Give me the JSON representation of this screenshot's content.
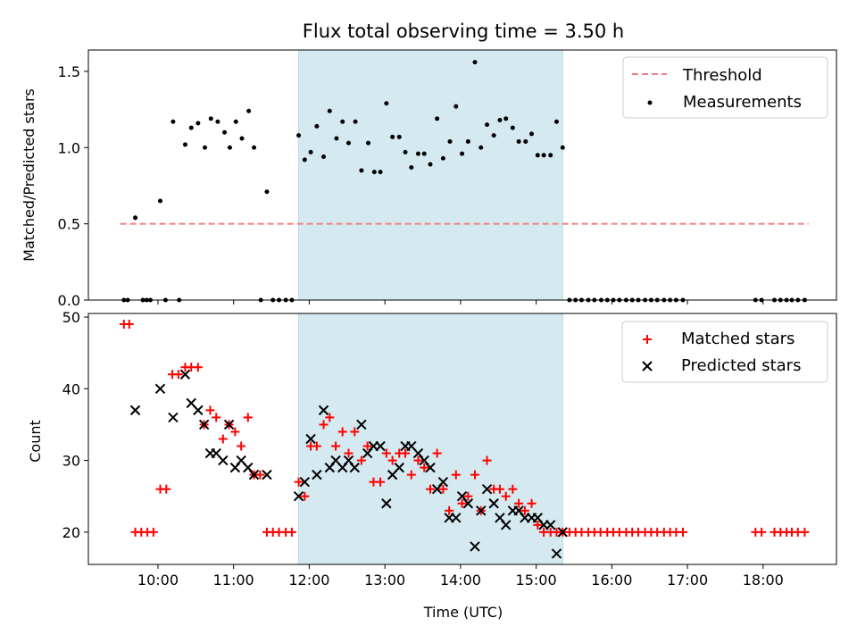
{
  "chart_data": [
    {
      "type": "scatter",
      "title": "Flux total observing time = 3.50 h",
      "xlabel": "",
      "ylabel": "Matched/Predicted stars",
      "xlim": [
        9.08,
        18.97
      ],
      "ylim": [
        0.0,
        1.64
      ],
      "xticks": [
        10,
        11,
        12,
        13,
        14,
        15,
        16,
        17,
        18
      ],
      "yticks": [
        0.0,
        0.5,
        1.0,
        1.5
      ],
      "ytick_labels": [
        "0.0",
        "0.5",
        "1.0",
        "1.5"
      ],
      "shaded_span": [
        11.86,
        15.35
      ],
      "shaded_color": "#d4eaf0",
      "threshold": {
        "label": "Threshold",
        "value": 0.5,
        "x_range": [
          9.5,
          18.6
        ],
        "color": "#f08080"
      },
      "legend_position": "upper right",
      "series": [
        {
          "name": "Measurements",
          "color": "#000000",
          "marker": "dot",
          "points": [
            [
              9.55,
              0.0
            ],
            [
              9.6,
              0.0
            ],
            [
              9.7,
              0.54
            ],
            [
              9.8,
              0.0
            ],
            [
              9.85,
              0.0
            ],
            [
              9.9,
              0.0
            ],
            [
              10.03,
              0.65
            ],
            [
              10.1,
              0.0
            ],
            [
              10.2,
              1.17
            ],
            [
              10.28,
              0.0
            ],
            [
              10.36,
              1.02
            ],
            [
              10.44,
              1.13
            ],
            [
              10.53,
              1.16
            ],
            [
              10.62,
              1.0
            ],
            [
              10.7,
              1.19
            ],
            [
              10.79,
              1.17
            ],
            [
              10.88,
              1.1
            ],
            [
              10.95,
              1.0
            ],
            [
              11.03,
              1.17
            ],
            [
              11.11,
              1.06
            ],
            [
              11.2,
              1.24
            ],
            [
              11.27,
              1.0
            ],
            [
              11.36,
              0.0
            ],
            [
              11.44,
              0.71
            ],
            [
              11.52,
              0.0
            ],
            [
              11.6,
              0.0
            ],
            [
              11.69,
              0.0
            ],
            [
              11.77,
              0.0
            ],
            [
              11.86,
              1.08
            ],
            [
              11.94,
              0.92
            ],
            [
              12.02,
              0.97
            ],
            [
              12.1,
              1.14
            ],
            [
              12.19,
              0.94
            ],
            [
              12.27,
              1.24
            ],
            [
              12.36,
              1.06
            ],
            [
              12.44,
              1.17
            ],
            [
              12.52,
              1.03
            ],
            [
              12.61,
              1.17
            ],
            [
              12.69,
              0.85
            ],
            [
              12.78,
              1.03
            ],
            [
              12.86,
              0.84
            ],
            [
              12.94,
              0.84
            ],
            [
              13.02,
              1.29
            ],
            [
              13.1,
              1.07
            ],
            [
              13.19,
              1.07
            ],
            [
              13.27,
              0.97
            ],
            [
              13.35,
              0.87
            ],
            [
              13.44,
              0.96
            ],
            [
              13.52,
              0.96
            ],
            [
              13.6,
              0.89
            ],
            [
              13.69,
              1.19
            ],
            [
              13.77,
              0.93
            ],
            [
              13.86,
              1.04
            ],
            [
              13.94,
              1.27
            ],
            [
              14.02,
              0.96
            ],
            [
              14.1,
              1.04
            ],
            [
              14.19,
              1.56
            ],
            [
              14.27,
              1.0
            ],
            [
              14.35,
              1.15
            ],
            [
              14.44,
              1.08
            ],
            [
              14.52,
              1.18
            ],
            [
              14.6,
              1.19
            ],
            [
              14.69,
              1.13
            ],
            [
              14.77,
              1.04
            ],
            [
              14.86,
              1.04
            ],
            [
              14.94,
              1.09
            ],
            [
              15.02,
              0.95
            ],
            [
              15.1,
              0.95
            ],
            [
              15.19,
              0.95
            ],
            [
              15.27,
              1.17
            ],
            [
              15.35,
              1.0
            ],
            [
              15.44,
              0.0
            ],
            [
              15.52,
              0.0
            ],
            [
              15.6,
              0.0
            ],
            [
              15.69,
              0.0
            ],
            [
              15.77,
              0.0
            ],
            [
              15.86,
              0.0
            ],
            [
              15.94,
              0.0
            ],
            [
              16.02,
              0.0
            ],
            [
              16.1,
              0.0
            ],
            [
              16.19,
              0.0
            ],
            [
              16.27,
              0.0
            ],
            [
              16.35,
              0.0
            ],
            [
              16.44,
              0.0
            ],
            [
              16.52,
              0.0
            ],
            [
              16.6,
              0.0
            ],
            [
              16.69,
              0.0
            ],
            [
              16.77,
              0.0
            ],
            [
              16.85,
              0.0
            ],
            [
              16.94,
              0.0
            ],
            [
              17.9,
              0.0
            ],
            [
              17.98,
              0.0
            ],
            [
              18.15,
              0.0
            ],
            [
              18.23,
              0.0
            ],
            [
              18.31,
              0.0
            ],
            [
              18.38,
              0.0
            ],
            [
              18.46,
              0.0
            ],
            [
              18.55,
              0.0
            ]
          ]
        }
      ]
    },
    {
      "type": "scatter",
      "title": "",
      "xlabel": "Time (UTC)",
      "ylabel": "Count",
      "xlim": [
        9.08,
        18.97
      ],
      "ylim": [
        15.5,
        50.5
      ],
      "xticks": [
        10,
        11,
        12,
        13,
        14,
        15,
        16,
        17,
        18
      ],
      "xtick_labels": [
        "10:00",
        "11:00",
        "12:00",
        "13:00",
        "14:00",
        "15:00",
        "16:00",
        "17:00",
        "18:00"
      ],
      "yticks": [
        20,
        30,
        40,
        50
      ],
      "ytick_labels": [
        "20",
        "30",
        "40",
        "50"
      ],
      "shaded_span": [
        11.86,
        15.35
      ],
      "shaded_color": "#d4eaf0",
      "legend_position": "upper right",
      "series": [
        {
          "name": "Matched stars",
          "color": "#ff0000",
          "marker": "plus",
          "points": [
            [
              9.55,
              49
            ],
            [
              9.62,
              49
            ],
            [
              9.7,
              20
            ],
            [
              9.78,
              20
            ],
            [
              9.86,
              20
            ],
            [
              9.94,
              20
            ],
            [
              10.03,
              26
            ],
            [
              10.11,
              26
            ],
            [
              10.19,
              42
            ],
            [
              10.27,
              42
            ],
            [
              10.36,
              43
            ],
            [
              10.44,
              43
            ],
            [
              10.53,
              43
            ],
            [
              10.61,
              35
            ],
            [
              10.69,
              37
            ],
            [
              10.77,
              36
            ],
            [
              10.86,
              33
            ],
            [
              10.94,
              35
            ],
            [
              11.02,
              34
            ],
            [
              11.1,
              32
            ],
            [
              11.19,
              36
            ],
            [
              11.27,
              28
            ],
            [
              11.35,
              28
            ],
            [
              11.44,
              20
            ],
            [
              11.52,
              20
            ],
            [
              11.6,
              20
            ],
            [
              11.69,
              20
            ],
            [
              11.77,
              20
            ],
            [
              11.86,
              27
            ],
            [
              11.94,
              25
            ],
            [
              12.02,
              32
            ],
            [
              12.1,
              32
            ],
            [
              12.19,
              35
            ],
            [
              12.27,
              36
            ],
            [
              12.35,
              32
            ],
            [
              12.44,
              34
            ],
            [
              12.52,
              31
            ],
            [
              12.6,
              34
            ],
            [
              12.69,
              30
            ],
            [
              12.77,
              32
            ],
            [
              12.85,
              27
            ],
            [
              12.94,
              27
            ],
            [
              13.02,
              31
            ],
            [
              13.1,
              30
            ],
            [
              13.19,
              31
            ],
            [
              13.27,
              31
            ],
            [
              13.35,
              28
            ],
            [
              13.44,
              30
            ],
            [
              13.52,
              29
            ],
            [
              13.6,
              26
            ],
            [
              13.69,
              31
            ],
            [
              13.77,
              26
            ],
            [
              13.85,
              23
            ],
            [
              13.94,
              28
            ],
            [
              14.02,
              24
            ],
            [
              14.1,
              25
            ],
            [
              14.19,
              28
            ],
            [
              14.27,
              23
            ],
            [
              14.35,
              30
            ],
            [
              14.44,
              26
            ],
            [
              14.52,
              26
            ],
            [
              14.6,
              25
            ],
            [
              14.69,
              26
            ],
            [
              14.77,
              24
            ],
            [
              14.85,
              23
            ],
            [
              14.94,
              24
            ],
            [
              15.02,
              21
            ],
            [
              15.1,
              20
            ],
            [
              15.19,
              20
            ],
            [
              15.27,
              20
            ],
            [
              15.35,
              20
            ],
            [
              15.44,
              20
            ],
            [
              15.52,
              20
            ],
            [
              15.6,
              20
            ],
            [
              15.69,
              20
            ],
            [
              15.77,
              20
            ],
            [
              15.85,
              20
            ],
            [
              15.94,
              20
            ],
            [
              16.02,
              20
            ],
            [
              16.1,
              20
            ],
            [
              16.19,
              20
            ],
            [
              16.27,
              20
            ],
            [
              16.35,
              20
            ],
            [
              16.44,
              20
            ],
            [
              16.52,
              20
            ],
            [
              16.6,
              20
            ],
            [
              16.69,
              20
            ],
            [
              16.77,
              20
            ],
            [
              16.85,
              20
            ],
            [
              16.94,
              20
            ],
            [
              17.9,
              20
            ],
            [
              17.98,
              20
            ],
            [
              18.15,
              20
            ],
            [
              18.23,
              20
            ],
            [
              18.31,
              20
            ],
            [
              18.38,
              20
            ],
            [
              18.46,
              20
            ],
            [
              18.55,
              20
            ]
          ]
        },
        {
          "name": "Predicted stars",
          "color": "#000000",
          "marker": "x",
          "points": [
            [
              9.7,
              37
            ],
            [
              10.03,
              40
            ],
            [
              10.2,
              36
            ],
            [
              10.36,
              42
            ],
            [
              10.44,
              38
            ],
            [
              10.53,
              37
            ],
            [
              10.61,
              35
            ],
            [
              10.69,
              31
            ],
            [
              10.77,
              31
            ],
            [
              10.86,
              30
            ],
            [
              10.94,
              35
            ],
            [
              11.02,
              29
            ],
            [
              11.1,
              30
            ],
            [
              11.19,
              29
            ],
            [
              11.27,
              28
            ],
            [
              11.44,
              28
            ],
            [
              11.86,
              25
            ],
            [
              11.94,
              27
            ],
            [
              12.02,
              33
            ],
            [
              12.1,
              28
            ],
            [
              12.19,
              37
            ],
            [
              12.27,
              29
            ],
            [
              12.35,
              30
            ],
            [
              12.44,
              29
            ],
            [
              12.52,
              30
            ],
            [
              12.6,
              29
            ],
            [
              12.69,
              35
            ],
            [
              12.77,
              31
            ],
            [
              12.85,
              32
            ],
            [
              12.94,
              32
            ],
            [
              13.02,
              24
            ],
            [
              13.1,
              28
            ],
            [
              13.19,
              29
            ],
            [
              13.27,
              32
            ],
            [
              13.35,
              32
            ],
            [
              13.44,
              31
            ],
            [
              13.52,
              30
            ],
            [
              13.6,
              29
            ],
            [
              13.69,
              26
            ],
            [
              13.77,
              27
            ],
            [
              13.85,
              22
            ],
            [
              13.94,
              22
            ],
            [
              14.02,
              25
            ],
            [
              14.1,
              24
            ],
            [
              14.19,
              18
            ],
            [
              14.27,
              23
            ],
            [
              14.35,
              26
            ],
            [
              14.44,
              24
            ],
            [
              14.52,
              22
            ],
            [
              14.6,
              21
            ],
            [
              14.69,
              23
            ],
            [
              14.77,
              23
            ],
            [
              14.85,
              22
            ],
            [
              14.94,
              22
            ],
            [
              15.02,
              22
            ],
            [
              15.1,
              21
            ],
            [
              15.19,
              21
            ],
            [
              15.27,
              17
            ],
            [
              15.35,
              20
            ]
          ]
        }
      ]
    }
  ]
}
